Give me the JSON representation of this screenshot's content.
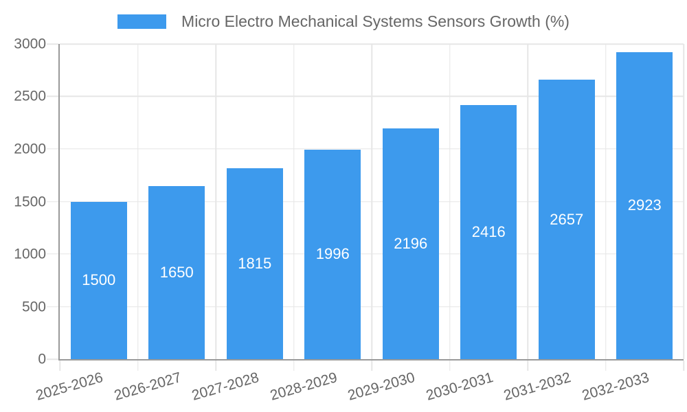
{
  "chart_data": {
    "type": "bar",
    "title": "Micro Electro Mechanical Systems Sensors Growth (%)",
    "categories": [
      "2025-2026",
      "2026-2027",
      "2027-2028",
      "2028-2029",
      "2029-2030",
      "2030-2031",
      "2031-2032",
      "2032-2033"
    ],
    "values": [
      1500,
      1650,
      1815,
      1996,
      2196,
      2416,
      2657,
      2923
    ],
    "xlabel": "",
    "ylabel": "",
    "ylim": [
      0,
      3000
    ],
    "yticks": [
      0,
      500,
      1000,
      1500,
      2000,
      2500,
      3000
    ],
    "grid": true,
    "legend_position": "top",
    "value_labels_position": "inside-center",
    "x_label_rotation_deg": -16,
    "colors": {
      "bar": "#3D9AED",
      "text": "#666666",
      "grid": "#E6E6E6",
      "axis": "#9A9A9A",
      "value_label": "#FFFFFF",
      "background": "#FFFFFF"
    }
  }
}
